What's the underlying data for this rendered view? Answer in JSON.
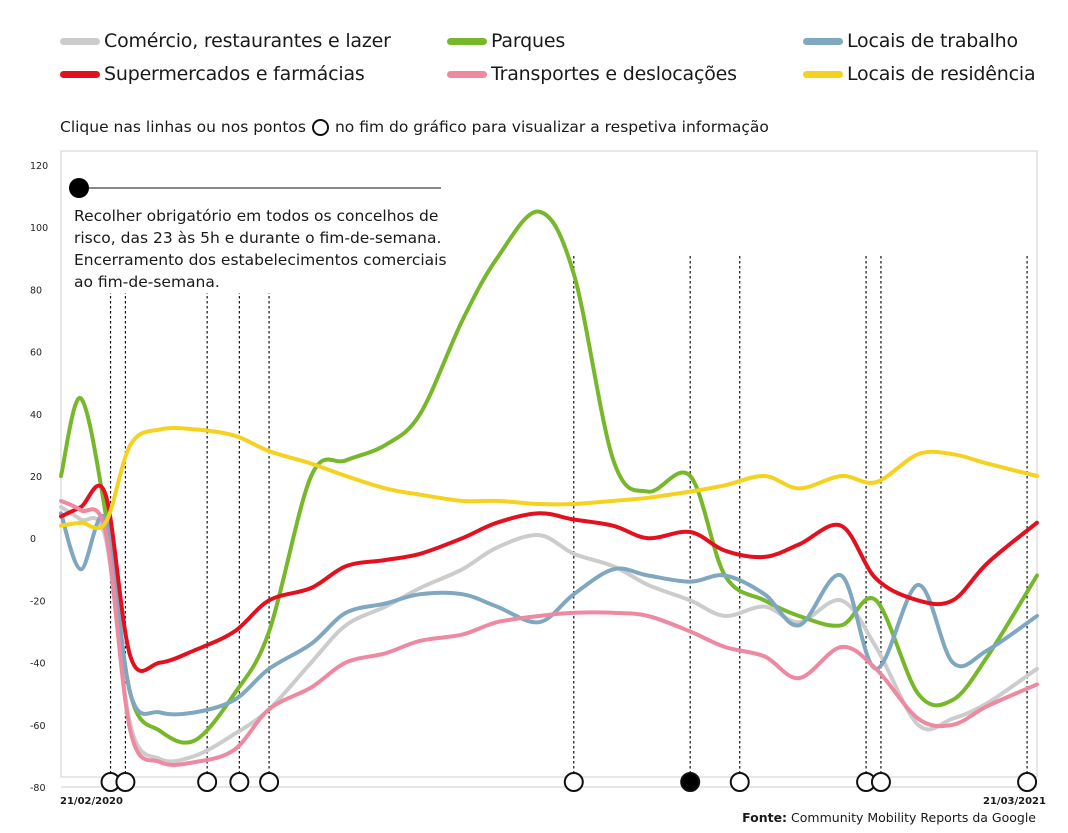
{
  "legend": [
    {
      "label": "Comércio, restaurantes e lazer",
      "color": "#cccccc"
    },
    {
      "label": "Parques",
      "color": "#76b82a"
    },
    {
      "label": "Locais de trabalho",
      "color": "#7fa8c0"
    },
    {
      "label": "Supermercados e farmácias",
      "color": "#e3101f"
    },
    {
      "label": "Transportes e deslocações",
      "color": "#ee89a2"
    },
    {
      "label": "Locais de residência",
      "color": "#f4d21f"
    }
  ],
  "instruction": {
    "before": "Clique nas linhas ou nos pontos",
    "after": "no fim do gráfico para visualizar a respetiva informação"
  },
  "annotation": "Recolher obrigatório em todos os concelhos de risco, das 23 às 5h e durante o fim-de-semana. Encerramento dos estabelecimentos comerciais ao fim-de-semana.",
  "dates": {
    "start": "21/02/2020",
    "end": "21/03/2021"
  },
  "source": {
    "label": "Fonte:",
    "text": "Community Mobility Reports da Google"
  },
  "chart_data": {
    "type": "line",
    "x": [
      "2020-02-21",
      "2020-02-29",
      "2020-03-10",
      "2020-03-20",
      "2020-04-01",
      "2020-04-15",
      "2020-05-01",
      "2020-05-15",
      "2020-06-01",
      "2020-06-15",
      "2020-07-01",
      "2020-07-15",
      "2020-08-01",
      "2020-08-15",
      "2020-09-01",
      "2020-09-15",
      "2020-10-01",
      "2020-10-15",
      "2020-11-01",
      "2020-11-15",
      "2020-12-01",
      "2020-12-15",
      "2021-01-01",
      "2021-01-15",
      "2021-02-01",
      "2021-02-15",
      "2021-03-01",
      "2021-03-21"
    ],
    "ylim": [
      -80,
      120
    ],
    "yticks": [
      -80,
      -60,
      -40,
      -20,
      0,
      20,
      40,
      60,
      80,
      100,
      120
    ],
    "series": [
      {
        "name": "Comércio, restaurantes e lazer",
        "color": "#cccccc",
        "values": [
          10,
          6,
          0,
          -60,
          -71,
          -70,
          -63,
          -55,
          -40,
          -28,
          -22,
          -16,
          -10,
          -3,
          1,
          -5,
          -9,
          -15,
          -20,
          -25,
          -22,
          -27,
          -20,
          -35,
          -60,
          -58,
          -53,
          -42
        ]
      },
      {
        "name": "Parques",
        "color": "#76b82a",
        "values": [
          20,
          45,
          8,
          -50,
          -62,
          -65,
          -50,
          -30,
          20,
          25,
          30,
          40,
          70,
          90,
          105,
          85,
          25,
          15,
          20,
          -12,
          -20,
          -25,
          -28,
          -20,
          -50,
          -52,
          -38,
          -12
        ]
      },
      {
        "name": "Locais de trabalho",
        "color": "#7fa8c0",
        "values": [
          8,
          -10,
          6,
          -50,
          -56,
          -56,
          -52,
          -42,
          -34,
          -24,
          -21,
          -18,
          -18,
          -22,
          -27,
          -18,
          -10,
          -12,
          -14,
          -12,
          -18,
          -28,
          -12,
          -42,
          -15,
          -40,
          -36,
          -25
        ]
      },
      {
        "name": "Supermercados e farmácias",
        "color": "#e3101f",
        "values": [
          7,
          10,
          14,
          -38,
          -40,
          -36,
          -30,
          -20,
          -16,
          -9,
          -7,
          -5,
          0,
          5,
          8,
          6,
          4,
          0,
          2,
          -4,
          -6,
          -2,
          4,
          -13,
          -20,
          -20,
          -8,
          5
        ]
      },
      {
        "name": "Transportes e deslocações",
        "color": "#ee89a2",
        "values": [
          12,
          9,
          2,
          -62,
          -72,
          -72,
          -68,
          -55,
          -48,
          -40,
          -37,
          -33,
          -31,
          -27,
          -25,
          -24,
          -24,
          -25,
          -30,
          -35,
          -38,
          -45,
          -35,
          -42,
          -58,
          -60,
          -54,
          -47
        ]
      },
      {
        "name": "Locais de residência",
        "color": "#f4d21f",
        "values": [
          4,
          5,
          5,
          30,
          35,
          35,
          33,
          28,
          24,
          20,
          16,
          14,
          12,
          12,
          11,
          11,
          12,
          13,
          15,
          17,
          20,
          16,
          20,
          18,
          27,
          27,
          24,
          20
        ]
      }
    ],
    "markers": [
      {
        "date": "2020-03-12",
        "filled": false
      },
      {
        "date": "2020-03-18",
        "filled": false
      },
      {
        "date": "2020-04-20",
        "filled": false
      },
      {
        "date": "2020-05-03",
        "filled": false
      },
      {
        "date": "2020-05-15",
        "filled": false
      },
      {
        "date": "2020-09-15",
        "filled": false
      },
      {
        "date": "2020-11-01",
        "filled": true
      },
      {
        "date": "2020-11-21",
        "filled": false
      },
      {
        "date": "2021-01-11",
        "filled": false
      },
      {
        "date": "2021-01-17",
        "filled": false
      },
      {
        "date": "2021-03-17",
        "filled": false
      }
    ]
  }
}
